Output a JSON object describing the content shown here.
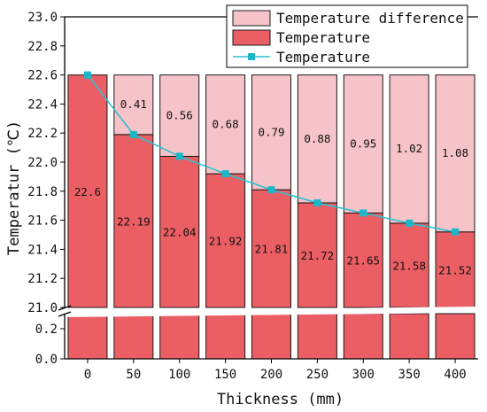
{
  "chart_data": {
    "type": "bar",
    "stacked": true,
    "categories": [
      "0",
      "50",
      "100",
      "150",
      "200",
      "250",
      "300",
      "350",
      "400"
    ],
    "series": [
      {
        "name": "Temperature",
        "kind": "bar",
        "values": [
          22.6,
          22.19,
          22.04,
          21.92,
          21.81,
          21.72,
          21.65,
          21.58,
          21.52
        ],
        "labels": [
          "22.6",
          "22.19",
          "22.04",
          "21.92",
          "21.81",
          "21.72",
          "21.65",
          "21.58",
          "21.52"
        ]
      },
      {
        "name": "Temperature difference",
        "kind": "bar",
        "values": [
          0,
          0.41,
          0.56,
          0.68,
          0.79,
          0.88,
          0.95,
          1.02,
          1.08
        ],
        "labels": [
          "",
          "0.41",
          "0.56",
          "0.68",
          "0.79",
          "0.88",
          "0.95",
          "1.02",
          "1.08"
        ]
      },
      {
        "name": "Temperature",
        "kind": "line",
        "values": [
          22.6,
          22.19,
          22.04,
          21.92,
          21.81,
          21.72,
          21.65,
          21.58,
          21.52
        ]
      }
    ],
    "xlabel": "Thickness (mm)",
    "ylabel": "Temperatur (℃)",
    "ylim": [
      0,
      23.0
    ],
    "axis_break": {
      "from": 0.3,
      "to": 21.0
    },
    "yticks_lower": [
      "0.0",
      "0.2"
    ],
    "yticks_upper": [
      "21.0",
      "21.2",
      "21.4",
      "21.6",
      "21.8",
      "22.0",
      "22.2",
      "22.4",
      "22.6",
      "22.8",
      "23.0"
    ],
    "legend_position": "top-right",
    "colors": {
      "temperature": "#eb5e64",
      "difference": "#f6c4c8",
      "line": "#2ec0d0",
      "marker": "#1cb7c8",
      "edge": "#1a1a1a"
    }
  }
}
